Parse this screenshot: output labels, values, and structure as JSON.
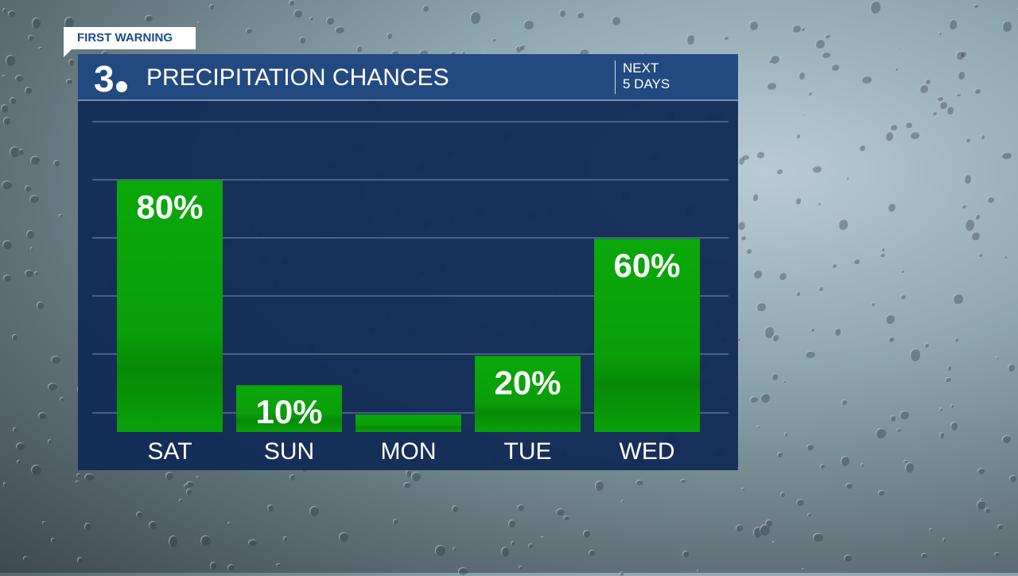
{
  "banner": {
    "label": "FIRST WARNING"
  },
  "header": {
    "logo": "3",
    "title": "PRECIPITATION CHANCES",
    "period_line1": "NEXT",
    "period_line2": "5 DAYS"
  },
  "colors": {
    "bar": "#0aa00a",
    "panel": "#122c56",
    "header": "#234a80"
  },
  "chart_data": {
    "type": "bar",
    "title": "PRECIPITATION CHANCES",
    "categories": [
      "SAT",
      "SUN",
      "MON",
      "TUE",
      "WED"
    ],
    "values": [
      80,
      10,
      0,
      20,
      60
    ],
    "data_labels": [
      "80%",
      "10%",
      "",
      "20%",
      "60%"
    ],
    "unit": "%",
    "ylim": [
      0,
      100
    ],
    "grid": true
  }
}
